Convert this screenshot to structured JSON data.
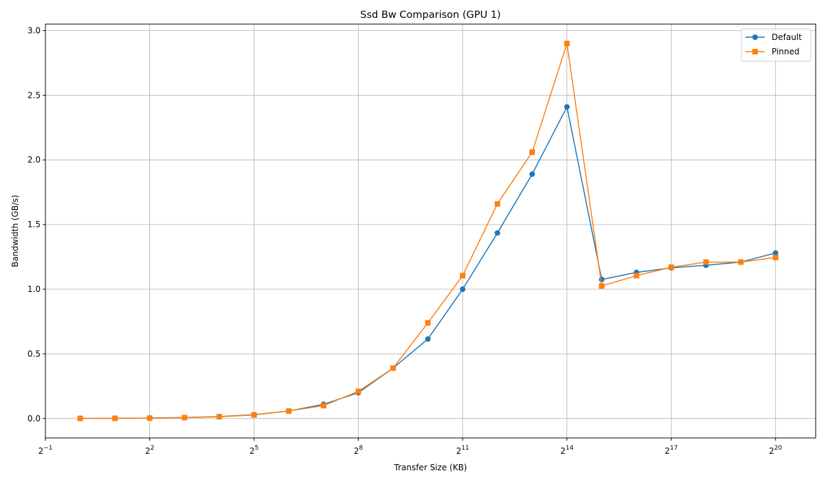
{
  "chart_data": {
    "type": "line",
    "title": "Ssd Bw Comparison (GPU 1)",
    "xlabel": "Transfer Size (KB)",
    "ylabel": "Bandwidth (GB/s)",
    "xscale": "log2",
    "xlim": [
      0.5,
      2333186
    ],
    "ylim": [
      -0.15,
      3.05
    ],
    "x_ticks": [
      {
        "value": 0.5,
        "base": "2",
        "exp": "−1"
      },
      {
        "value": 4,
        "base": "2",
        "exp": "2"
      },
      {
        "value": 32,
        "base": "2",
        "exp": "5"
      },
      {
        "value": 256,
        "base": "2",
        "exp": "8"
      },
      {
        "value": 2048,
        "base": "2",
        "exp": "11"
      },
      {
        "value": 16384,
        "base": "2",
        "exp": "14"
      },
      {
        "value": 131072,
        "base": "2",
        "exp": "17"
      },
      {
        "value": 1048576,
        "base": "2",
        "exp": "20"
      }
    ],
    "y_ticks": [
      {
        "value": 0.0,
        "label": "0.0"
      },
      {
        "value": 0.5,
        "label": "0.5"
      },
      {
        "value": 1.0,
        "label": "1.0"
      },
      {
        "value": 1.5,
        "label": "1.5"
      },
      {
        "value": 2.0,
        "label": "2.0"
      },
      {
        "value": 2.5,
        "label": "2.5"
      },
      {
        "value": 3.0,
        "label": "3.0"
      }
    ],
    "grid": true,
    "legend_position": "top-right",
    "x": [
      1,
      2,
      4,
      8,
      16,
      32,
      64,
      128,
      256,
      512,
      1024,
      2048,
      4096,
      8192,
      16384,
      32768,
      65536,
      131072,
      262144,
      524288,
      1048576
    ],
    "series": [
      {
        "name": "Default",
        "color": "#1f77b4",
        "marker": "circle",
        "values": [
          0.001,
          0.002,
          0.004,
          0.008,
          0.015,
          0.03,
          0.058,
          0.11,
          0.2,
          0.39,
          0.615,
          1.0,
          1.435,
          1.89,
          2.41,
          1.075,
          1.13,
          1.165,
          1.185,
          1.21,
          1.28
        ]
      },
      {
        "name": "Pinned",
        "color": "#ff7f0e",
        "marker": "square",
        "values": [
          0.001,
          0.002,
          0.003,
          0.007,
          0.014,
          0.028,
          0.058,
          0.1,
          0.21,
          0.39,
          0.74,
          1.105,
          1.66,
          2.06,
          2.9,
          1.025,
          1.105,
          1.17,
          1.21,
          1.21,
          1.245
        ]
      }
    ]
  }
}
